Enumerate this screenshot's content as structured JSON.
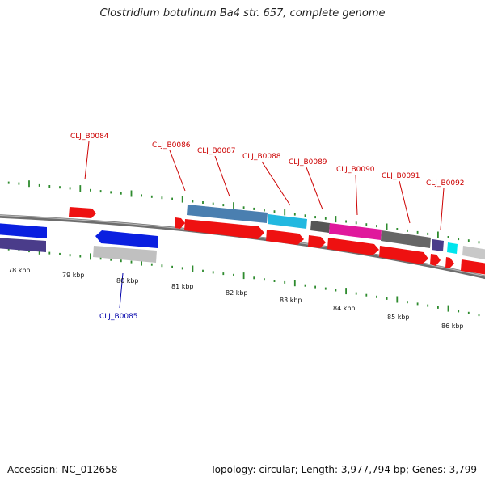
{
  "title": "Clostridium botulinum Ba4 str. 657, complete genome",
  "footer": {
    "accession": "Accession: NC_012658",
    "summary": "Topology: circular; Length: 3,977,794 bp; Genes: 3,799"
  },
  "colors": {
    "backbone": "#8a8a8a",
    "tick": "#2e8b2e",
    "label_forward": "#cc0000",
    "label_reverse": "#0000aa"
  },
  "tick_labels": [
    "78 kbp",
    "79 kbp",
    "80 kbp",
    "81 kbp",
    "82 kbp",
    "83 kbp",
    "84 kbp",
    "85 kbp",
    "86 kbp"
  ],
  "gene_labels": [
    {
      "text": "CLJ_B0084",
      "strand": "forward"
    },
    {
      "text": "CLJ_B0085",
      "strand": "reverse"
    },
    {
      "text": "CLJ_B0086",
      "strand": "forward"
    },
    {
      "text": "CLJ_B0087",
      "strand": "forward"
    },
    {
      "text": "CLJ_B0088",
      "strand": "forward"
    },
    {
      "text": "CLJ_B0089",
      "strand": "forward"
    },
    {
      "text": "CLJ_B0090",
      "strand": "forward"
    },
    {
      "text": "CLJ_B0091",
      "strand": "forward"
    },
    {
      "text": "CLJ_B0092",
      "strand": "forward"
    }
  ]
}
